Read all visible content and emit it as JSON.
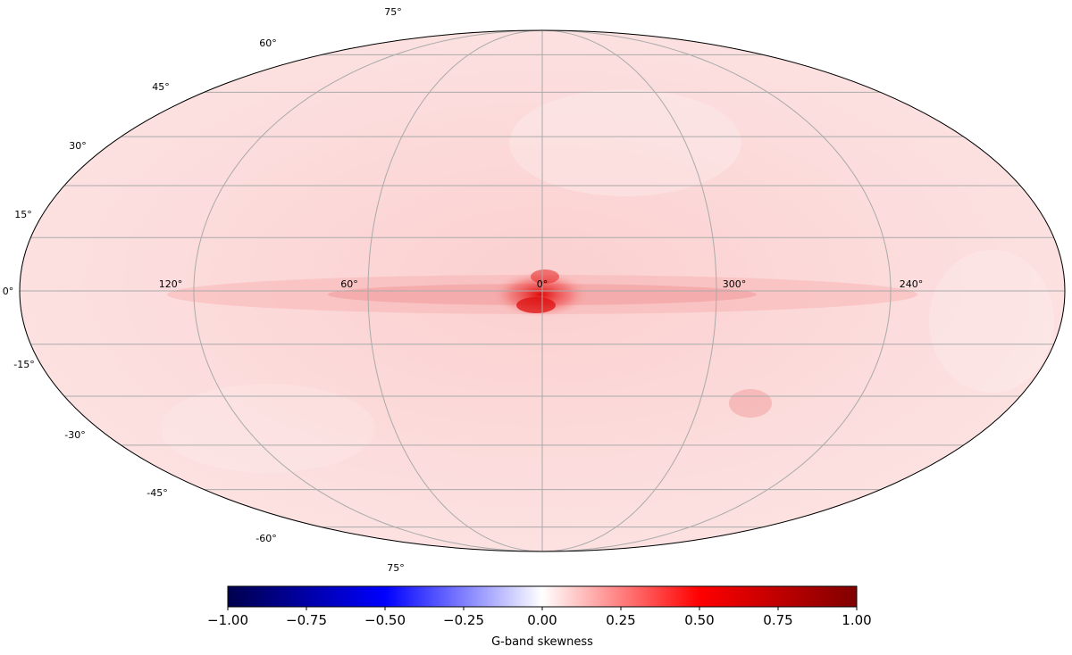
{
  "map": {
    "projection": "mollweide",
    "colormap": "seismic",
    "value_range": [
      -1.0,
      1.0
    ]
  },
  "longitude_labels": [
    "120°",
    "60°",
    "0°",
    "300°",
    "240°"
  ],
  "latitude_labels": {
    "north": [
      "75°",
      "60°",
      "45°",
      "30°",
      "15°"
    ],
    "equator": "0°",
    "south": [
      "-15°",
      "-30°",
      "-45°",
      "-60°",
      "75°"
    ]
  },
  "colorbar": {
    "label": "G-band skewness",
    "ticks": [
      "−1.00",
      "−0.75",
      "−0.50",
      "−0.25",
      "0.00",
      "0.25",
      "0.50",
      "0.75",
      "1.00"
    ],
    "colors": [
      "#00004d",
      "#0000ff",
      "#ffffff",
      "#ff0000",
      "#800000"
    ]
  }
}
